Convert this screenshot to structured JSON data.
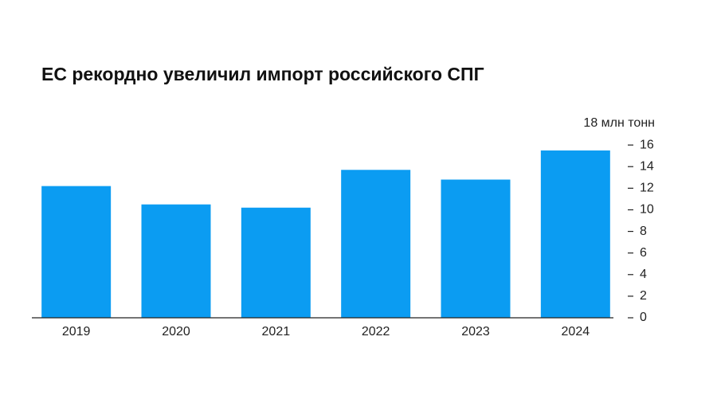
{
  "chart_data": {
    "type": "bar",
    "title": "ЕС рекордно увеличил импорт российского СПГ",
    "categories": [
      "2019",
      "2020",
      "2021",
      "2022",
      "2023",
      "2024"
    ],
    "values": [
      12.2,
      10.5,
      10.2,
      13.7,
      12.8,
      15.5
    ],
    "color": "#0b9cf2",
    "ylim": [
      0,
      18
    ],
    "yticks": [
      0,
      2,
      4,
      6,
      8,
      10,
      12,
      14,
      16,
      {
        "value": 18,
        "label": "18 млн тонн"
      }
    ],
    "grid": false
  }
}
